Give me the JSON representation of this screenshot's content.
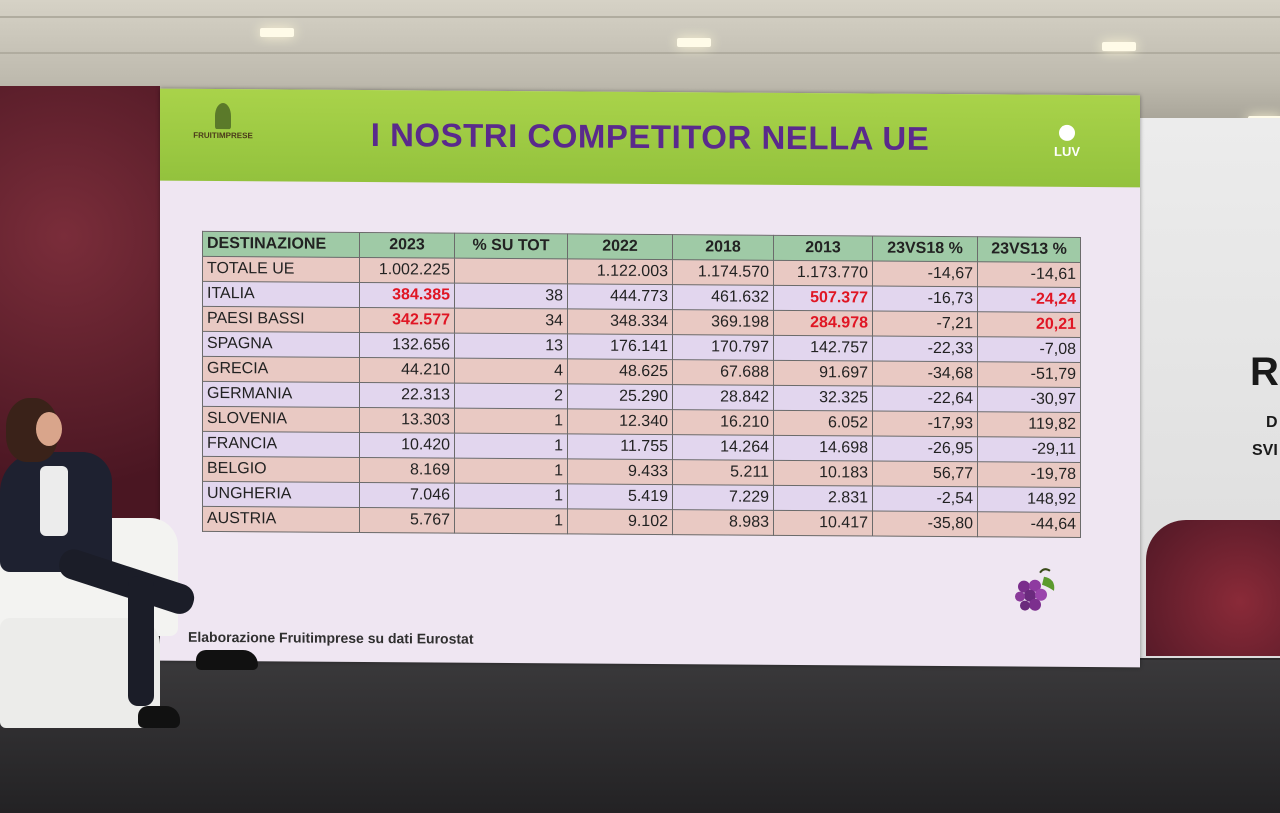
{
  "slide": {
    "title": "I NOSTRI COMPETITOR NELLA UE",
    "logo_left_text": "FRUITIMPRESE",
    "logo_right_text": "LUV",
    "source_note": "Elaborazione Fruitimprese su dati Eurostat"
  },
  "table": {
    "headers": [
      "DESTINAZIONE",
      "2023",
      "% SU TOT",
      "2022",
      "2018",
      "2013",
      "23VS18 %",
      "23VS13 %"
    ],
    "rows": [
      [
        "TOTALE UE",
        "1.002.225",
        "",
        "1.122.003",
        "1.174.570",
        "1.173.770",
        "-14,67",
        "-14,61"
      ],
      [
        "ITALIA",
        "384.385",
        "38",
        "444.773",
        "461.632",
        "507.377",
        "-16,73",
        "-24,24"
      ],
      [
        "PAESI BASSI",
        "342.577",
        "34",
        "348.334",
        "369.198",
        "284.978",
        "-7,21",
        "20,21"
      ],
      [
        "SPAGNA",
        "132.656",
        "13",
        "176.141",
        "170.797",
        "142.757",
        "-22,33",
        "-7,08"
      ],
      [
        "GRECIA",
        "44.210",
        "4",
        "48.625",
        "67.688",
        "91.697",
        "-34,68",
        "-51,79"
      ],
      [
        "GERMANIA",
        "22.313",
        "2",
        "25.290",
        "28.842",
        "32.325",
        "-22,64",
        "-30,97"
      ],
      [
        "SLOVENIA",
        "13.303",
        "1",
        "12.340",
        "16.210",
        "6.052",
        "-17,93",
        "119,82"
      ],
      [
        "FRANCIA",
        "10.420",
        "1",
        "11.755",
        "14.264",
        "14.698",
        "-26,95",
        "-29,11"
      ],
      [
        "BELGIO",
        "8.169",
        "1",
        "9.433",
        "5.211",
        "10.183",
        "56,77",
        "-19,78"
      ],
      [
        "UNGHERIA",
        "7.046",
        "1",
        "5.419",
        "7.229",
        "2.831",
        "-2,54",
        "148,92"
      ],
      [
        "AUSTRIA",
        "5.767",
        "1",
        "9.102",
        "8.983",
        "10.417",
        "-35,80",
        "-44,64"
      ]
    ]
  },
  "background": {
    "right_wall_text_1": "R",
    "right_wall_text_2": "D",
    "right_wall_text_3": "SVI"
  },
  "colors": {
    "title": "#5a2a8c",
    "banner": "#9fcd45",
    "header_cell": "#9fcaa6",
    "row_pink": "#e9c9c3",
    "row_lilac": "#e2d6ee",
    "highlight": "#e01624"
  }
}
